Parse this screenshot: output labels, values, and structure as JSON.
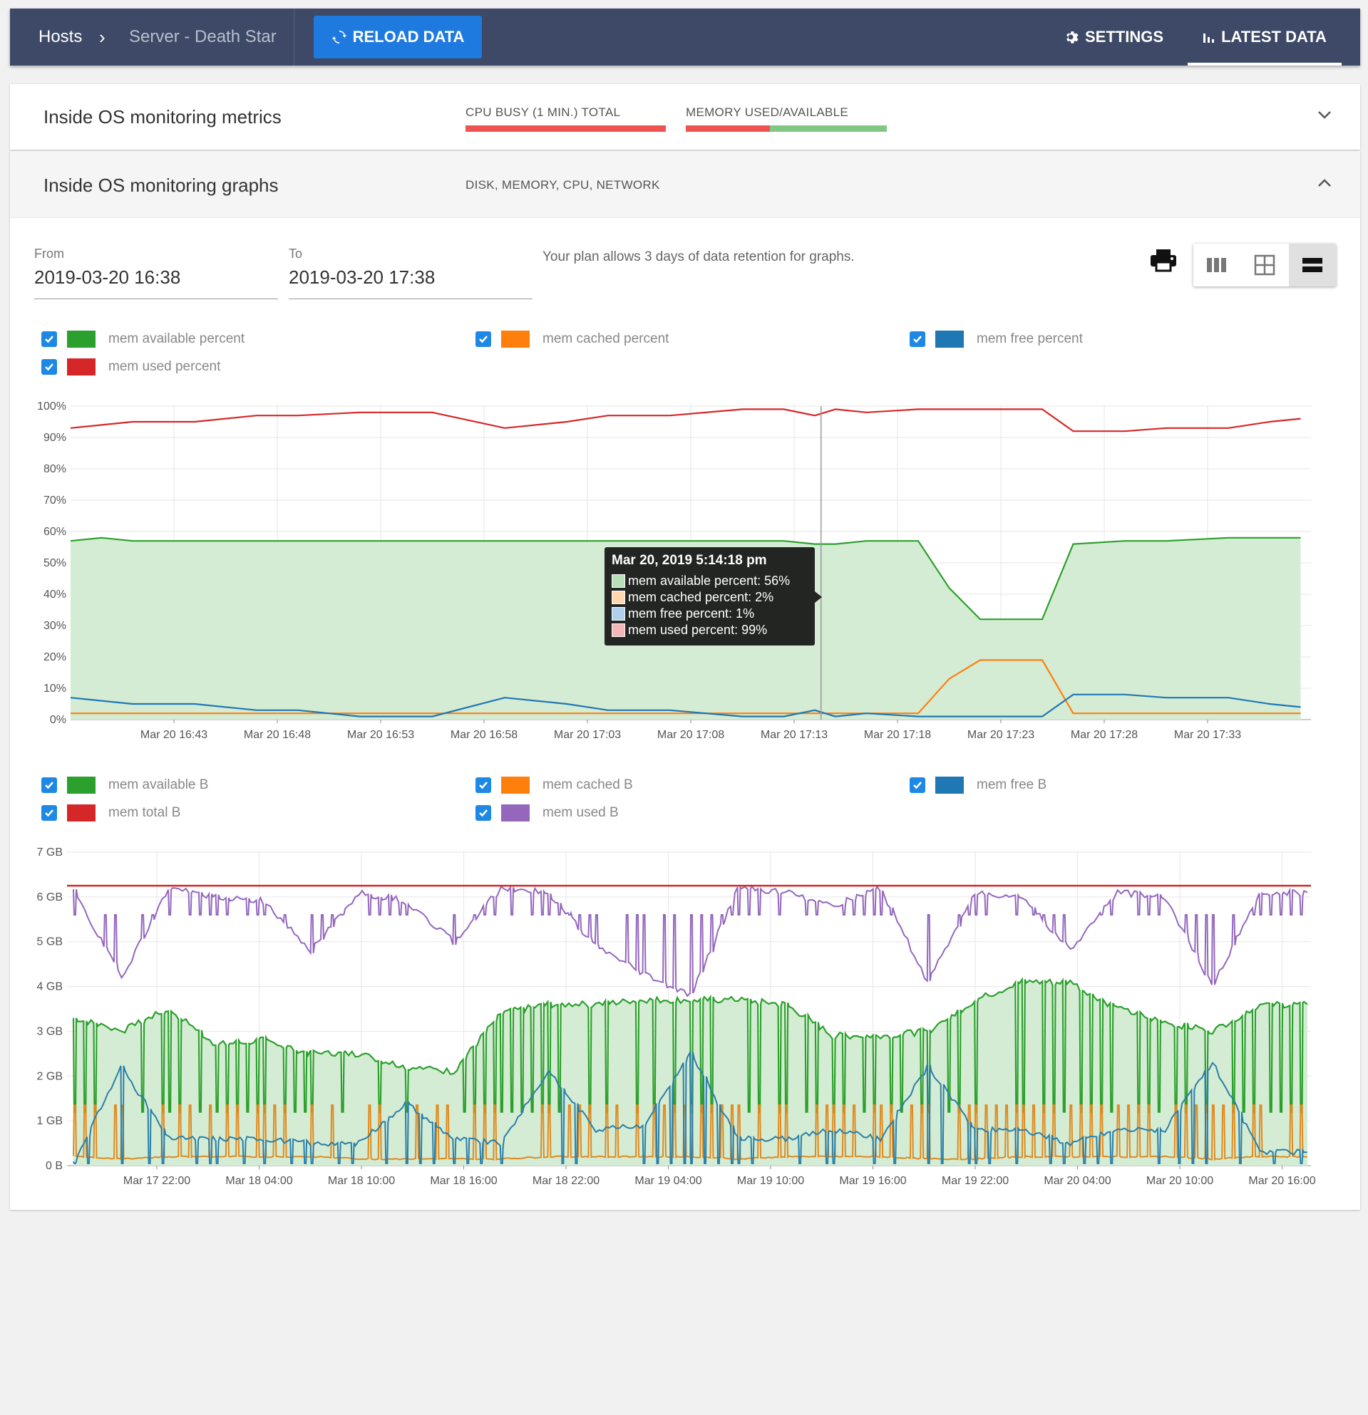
{
  "topbar": {
    "breadcrumb_hosts": "Hosts",
    "breadcrumb_sep": "›",
    "breadcrumb_server": "Server - Death Star",
    "reload_label": "RELOAD DATA",
    "settings_label": "SETTINGS",
    "latest_label": "LATEST DATA"
  },
  "metrics_panel": {
    "title": "Inside OS monitoring metrics",
    "cpu_label": "CPU BUSY (1 MIN.) TOTAL",
    "memory_label": "MEMORY USED/AVAILABLE",
    "memory_used_fraction": 0.42
  },
  "graphs_panel": {
    "title": "Inside OS monitoring graphs",
    "subtitle": "DISK, MEMORY, CPU, NETWORK"
  },
  "range": {
    "from_label": "From",
    "from_value": "2019-03-20 16:38",
    "to_label": "To",
    "to_value": "2019-03-20 17:38",
    "retention_note": "Your plan allows 3 days of data retention for graphs."
  },
  "colors": {
    "green": "#2ca02c",
    "orange": "#ff7f0e",
    "blue": "#1f77b4",
    "red": "#d62728",
    "purple": "#9467bd",
    "area_fill": "#d4ecd4",
    "checkbox": "#1e88e5"
  },
  "legend1": [
    {
      "label": "mem available percent",
      "color": "#2ca02c"
    },
    {
      "label": "mem cached percent",
      "color": "#ff7f0e"
    },
    {
      "label": "mem free percent",
      "color": "#1f77b4"
    },
    {
      "label": "mem used percent",
      "color": "#d62728"
    }
  ],
  "legend2": [
    {
      "label": "mem available B",
      "color": "#2ca02c"
    },
    {
      "label": "mem cached B",
      "color": "#ff7f0e"
    },
    {
      "label": "mem free B",
      "color": "#1f77b4"
    },
    {
      "label": "mem total B",
      "color": "#d62728"
    },
    {
      "label": "mem used B",
      "color": "#9467bd"
    }
  ],
  "tooltip": {
    "title": "Mar 20, 2019 5:14:18 pm",
    "rows": [
      {
        "text": "mem available percent: 56%",
        "color": "#b8e0b8"
      },
      {
        "text": "mem cached percent: 2%",
        "color": "#ffd8b0"
      },
      {
        "text": "mem free percent: 1%",
        "color": "#b0d0ec"
      },
      {
        "text": "mem used percent: 99%",
        "color": "#f4b6b6"
      }
    ]
  },
  "chart_data": [
    {
      "type": "line",
      "ylim": [
        0,
        100
      ],
      "yticks": [
        "0%",
        "10%",
        "20%",
        "30%",
        "40%",
        "50%",
        "60%",
        "70%",
        "80%",
        "90%",
        "100%"
      ],
      "xticks": [
        "Mar 20 16:43",
        "Mar 20 16:48",
        "Mar 20 16:53",
        "Mar 20 16:58",
        "Mar 20 17:03",
        "Mar 20 17:08",
        "Mar 20 17:13",
        "Mar 20 17:18",
        "Mar 20 17:23",
        "Mar 20 17:28",
        "Mar 20 17:33"
      ],
      "xtick_minutes": [
        5,
        10,
        15,
        20,
        25,
        30,
        35,
        40,
        45,
        50,
        55
      ],
      "x_minutes": [
        0,
        1.5,
        3,
        6,
        9,
        11,
        14,
        17.5,
        21,
        24,
        26,
        29,
        32.5,
        34.5,
        36,
        37,
        38.5,
        41,
        42.5,
        44,
        45.5,
        47,
        48.5,
        51,
        53,
        56,
        58,
        59.5
      ],
      "series": [
        {
          "name": "mem available percent",
          "values": [
            57,
            58,
            57,
            57,
            57,
            57,
            57,
            57,
            57,
            57,
            57,
            57,
            57,
            57,
            56,
            56,
            57,
            57,
            42,
            32,
            32,
            32,
            56,
            57,
            57,
            58,
            58,
            58
          ],
          "fill": true
        },
        {
          "name": "mem cached percent",
          "values": [
            2,
            2,
            2,
            2,
            2,
            2,
            2,
            2,
            2,
            2,
            2,
            2,
            2,
            2,
            2,
            2,
            2,
            2,
            13,
            19,
            19,
            19,
            2,
            2,
            2,
            2,
            2,
            2
          ]
        },
        {
          "name": "mem free percent",
          "values": [
            7,
            6,
            5,
            5,
            3,
            3,
            1,
            1,
            7,
            5,
            3,
            3,
            1,
            1,
            3,
            1,
            2,
            1,
            1,
            1,
            1,
            1,
            8,
            8,
            7,
            7,
            5,
            4
          ]
        },
        {
          "name": "mem used percent",
          "values": [
            93,
            94,
            95,
            95,
            97,
            97,
            98,
            98,
            93,
            95,
            97,
            97,
            99,
            99,
            97,
            99,
            98,
            99,
            99,
            99,
            99,
            99,
            92,
            92,
            93,
            93,
            95,
            96
          ]
        }
      ],
      "hover_minute": 36.3
    },
    {
      "type": "line",
      "ylim": [
        0,
        7
      ],
      "yticks": [
        "0 B",
        "1 GB",
        "2 GB",
        "3 GB",
        "4 GB",
        "5 GB",
        "6 GB",
        "7 GB"
      ],
      "xticks": [
        "Mar 17 22:00",
        "Mar 18 04:00",
        "Mar 18 10:00",
        "Mar 18 16:00",
        "Mar 18 22:00",
        "Mar 19 04:00",
        "Mar 19 10:00",
        "Mar 19 16:00",
        "Mar 19 22:00",
        "Mar 20 04:00",
        "Mar 20 10:00",
        "Mar 20 16:00"
      ],
      "total_gb": 6.25,
      "available_gb": [
        3.3,
        3.0,
        3.5,
        2.7,
        2.8,
        2.5,
        2.5,
        2.2,
        2.1,
        3.4,
        3.6,
        3.6,
        3.7,
        3.7,
        3.7,
        3.6,
        2.9,
        2.9,
        3.0,
        3.7,
        4.1,
        4.1,
        3.5,
        3.2,
        3.0,
        3.6,
        3.6
      ],
      "used_gb": [
        6.1,
        4.2,
        6.2,
        6.0,
        5.9,
        4.8,
        6.1,
        5.9,
        5.0,
        6.2,
        6.1,
        4.9,
        4.3,
        3.8,
        6.2,
        6.1,
        5.8,
        6.2,
        4.1,
        6.1,
        6.0,
        4.8,
        6.1,
        6.0,
        4.0,
        6.1,
        6.1
      ],
      "free_gb": [
        0.1,
        2.2,
        0.6,
        0.6,
        0.6,
        0.5,
        0.5,
        1.4,
        0.6,
        0.5,
        2.1,
        0.8,
        0.9,
        2.5,
        0.6,
        0.6,
        0.8,
        0.6,
        2.2,
        0.8,
        0.8,
        0.5,
        0.8,
        0.8,
        2.3,
        0.3,
        0.3
      ],
      "cached_gb": [
        0.2,
        0.15,
        0.2,
        0.2,
        0.2,
        0.2,
        0.15,
        0.15,
        0.15,
        0.15,
        0.2,
        0.2,
        0.2,
        0.2,
        0.15,
        0.2,
        0.2,
        0.2,
        0.15,
        0.15,
        0.2,
        0.2,
        0.2,
        0.2,
        0.15,
        0.2,
        0.2
      ]
    }
  ]
}
